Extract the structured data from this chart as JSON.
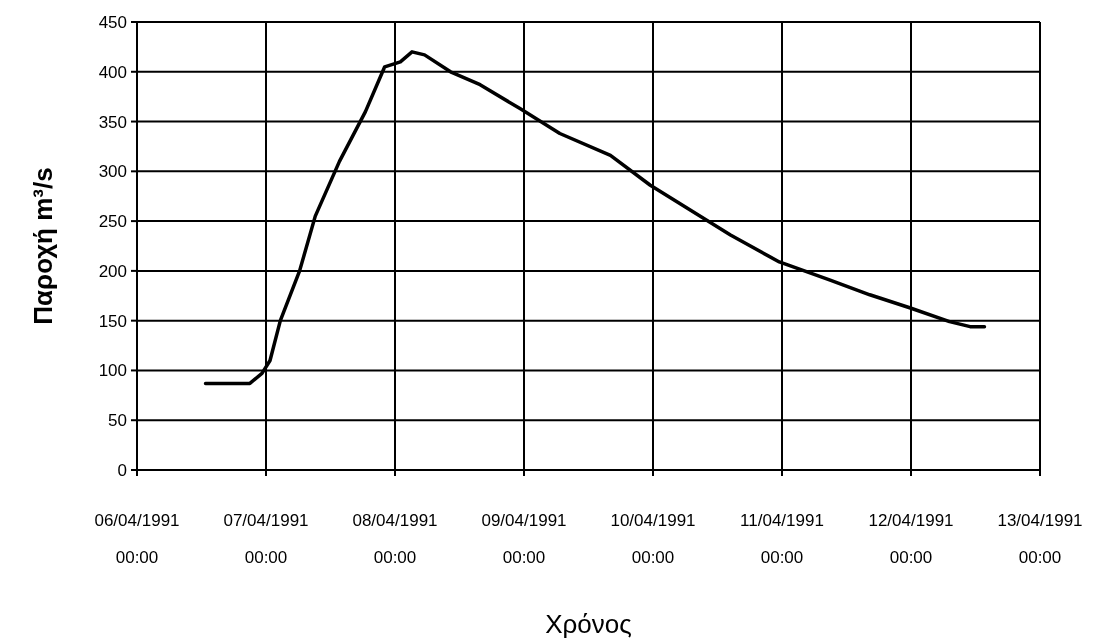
{
  "chart_data": {
    "type": "line",
    "xlabel": "Χρόνος",
    "ylabel": "Παροχή m³/s",
    "x": [
      "1991-04-06T12:45",
      "1991-04-06T21:00",
      "1991-04-06T23:15",
      "1991-04-07T00:45",
      "1991-04-07T02:40",
      "1991-04-07T06:15",
      "1991-04-07T09:10",
      "1991-04-07T13:40",
      "1991-04-07T18:30",
      "1991-04-07T22:05",
      "1991-04-08T01:00",
      "1991-04-08T03:10",
      "1991-04-08T05:30",
      "1991-04-08T10:20",
      "1991-04-08T15:50",
      "1991-04-08T23:15",
      "1991-04-09T06:40",
      "1991-04-09T16:05",
      "1991-04-09T23:30",
      "1991-04-10T07:00",
      "1991-04-10T14:25",
      "1991-04-10T23:30",
      "1991-04-11T08:50",
      "1991-04-11T16:20",
      "1991-04-11T23:45",
      "1991-04-12T07:10",
      "1991-04-12T11:00",
      "1991-04-12T13:40"
    ],
    "series": [
      {
        "color": "#000000",
        "values": [
          87,
          87,
          97,
          110,
          150,
          200,
          255,
          310,
          360,
          405,
          410,
          420,
          417,
          400,
          387,
          363,
          338,
          316,
          286,
          261,
          236,
          209,
          191,
          176,
          163,
          149,
          144,
          144
        ]
      }
    ],
    "xlim": [
      "1991-04-06",
      "1991-04-13"
    ],
    "xticks": [
      {
        "value": "1991-04-06",
        "label": "06/04/1991 00:00"
      },
      {
        "value": "1991-04-07",
        "label": "07/04/1991 00:00"
      },
      {
        "value": "1991-04-08",
        "label": "08/04/1991 00:00"
      },
      {
        "value": "1991-04-09",
        "label": "09/04/1991 00:00"
      },
      {
        "value": "1991-04-10",
        "label": "10/04/1991 00:00"
      },
      {
        "value": "1991-04-11",
        "label": "11/04/1991 00:00"
      },
      {
        "value": "1991-04-12",
        "label": "12/04/1991 00:00"
      },
      {
        "value": "1991-04-13",
        "label": "13/04/1991 00:00"
      }
    ],
    "ylim": [
      0,
      450
    ],
    "yticks": [
      0,
      50,
      100,
      150,
      200,
      250,
      300,
      350,
      400,
      450
    ],
    "grid": true,
    "marker": "none",
    "line_style": "solid"
  }
}
